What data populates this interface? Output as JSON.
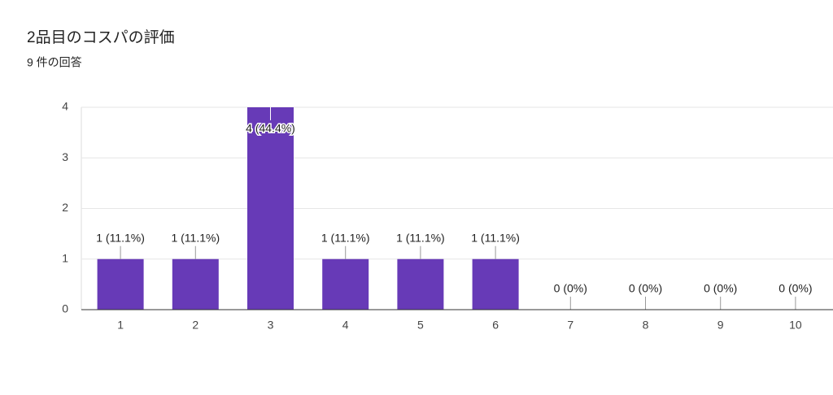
{
  "chart_data": {
    "type": "bar",
    "title": "2品目のコスパの評価",
    "subtitle": "9 件の回答",
    "categories": [
      "1",
      "2",
      "3",
      "4",
      "5",
      "6",
      "7",
      "8",
      "9",
      "10"
    ],
    "values": [
      1,
      1,
      4,
      1,
      1,
      1,
      0,
      0,
      0,
      0
    ],
    "value_labels": [
      "1 (11.1%)",
      "1 (11.1%)",
      "4 (44.4%)",
      "1 (11.1%)",
      "1 (11.1%)",
      "1 (11.1%)",
      "0 (0%)",
      "0 (0%)",
      "0 (0%)",
      "0 (0%)"
    ],
    "color": "#673ab7",
    "ylim": [
      0,
      4
    ],
    "yticks": [
      0,
      1,
      2,
      3,
      4
    ],
    "grid": true
  }
}
